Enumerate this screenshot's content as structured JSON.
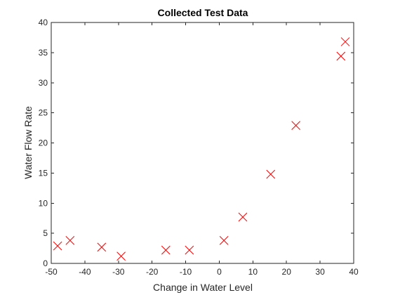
{
  "chart_data": {
    "type": "scatter",
    "title": "Collected Test Data",
    "xlabel": "Change in Water Level",
    "ylabel": "Water Flow Rate",
    "xlim": [
      -50,
      40
    ],
    "ylim": [
      0,
      40
    ],
    "xticks": [
      -50,
      -40,
      -30,
      -20,
      -10,
      0,
      10,
      20,
      30,
      40
    ],
    "yticks": [
      0,
      5,
      10,
      15,
      20,
      25,
      30,
      35,
      40
    ],
    "grid": false,
    "legend": "none",
    "marker": "x",
    "marker_color": "#ff0000",
    "series": [
      {
        "points": [
          {
            "x": -48.1,
            "y": 2.9
          },
          {
            "x": -44.4,
            "y": 3.8
          },
          {
            "x": -35.0,
            "y": 2.7
          },
          {
            "x": -29.2,
            "y": 1.2
          },
          {
            "x": -15.9,
            "y": 2.2
          },
          {
            "x": -8.9,
            "y": 2.2
          },
          {
            "x": 1.4,
            "y": 3.8
          },
          {
            "x": 7.0,
            "y": 7.7
          },
          {
            "x": 15.3,
            "y": 14.8
          },
          {
            "x": 22.8,
            "y": 22.9
          },
          {
            "x": 36.2,
            "y": 34.4
          },
          {
            "x": 37.5,
            "y": 36.8
          }
        ]
      }
    ]
  }
}
